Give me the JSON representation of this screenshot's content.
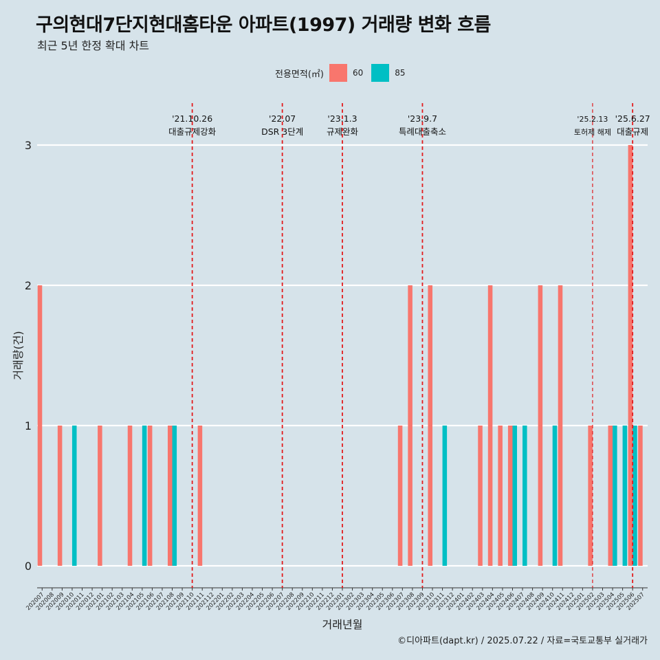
{
  "header": {
    "title": "구의현대7단지현대홈타운 아파트(1997) 거래량 변화 흐름",
    "subtitle": "최근 5년 한정 확대 차트"
  },
  "legend": {
    "title": "전용면적(㎡)",
    "items": [
      {
        "label": "60",
        "color": "#F8766D"
      },
      {
        "label": "85",
        "color": "#00BFC4"
      }
    ]
  },
  "caption": "©디아파트(dapt.kr) / 2025.07.22 / 자료=국토교통부 실거래가",
  "chart_data": {
    "type": "bar",
    "xlabel": "거래년월",
    "ylabel": "거래량(건)",
    "ylim": [
      0,
      3
    ],
    "yticks": [
      0,
      1,
      2,
      3
    ],
    "grid": true,
    "legend_position": "top",
    "categories": [
      "202007",
      "202008",
      "202009",
      "202010",
      "202011",
      "202012",
      "202101",
      "202102",
      "202103",
      "202104",
      "202105",
      "202106",
      "202107",
      "202108",
      "202109",
      "202110",
      "202111",
      "202112",
      "202201",
      "202202",
      "202203",
      "202204",
      "202205",
      "202206",
      "202207",
      "202208",
      "202209",
      "202210",
      "202211",
      "202212",
      "202301",
      "202302",
      "202303",
      "202304",
      "202305",
      "202306",
      "202307",
      "202308",
      "202309",
      "202310",
      "202311",
      "202312",
      "202401",
      "202402",
      "202403",
      "202404",
      "202405",
      "202406",
      "202407",
      "202408",
      "202409",
      "202410",
      "202411",
      "202412",
      "202501",
      "202502",
      "202503",
      "202504",
      "202505",
      "202506",
      "202507"
    ],
    "series": [
      {
        "name": "60",
        "color": "#F8766D",
        "values": [
          2,
          0,
          1,
          0,
          0,
          0,
          1,
          0,
          0,
          1,
          0,
          1,
          0,
          1,
          0,
          0,
          1,
          0,
          0,
          0,
          0,
          0,
          0,
          0,
          0,
          0,
          0,
          0,
          0,
          0,
          0,
          0,
          0,
          0,
          0,
          0,
          1,
          2,
          0,
          2,
          0,
          0,
          0,
          0,
          1,
          2,
          1,
          1,
          0,
          0,
          2,
          0,
          2,
          0,
          0,
          1,
          0,
          1,
          0,
          3,
          1
        ]
      },
      {
        "name": "85",
        "color": "#00BFC4",
        "values": [
          0,
          0,
          0,
          1,
          0,
          0,
          0,
          0,
          0,
          0,
          1,
          0,
          0,
          1,
          0,
          0,
          0,
          0,
          0,
          0,
          0,
          0,
          0,
          0,
          0,
          0,
          0,
          0,
          0,
          0,
          0,
          0,
          0,
          0,
          0,
          0,
          0,
          0,
          0,
          0,
          1,
          0,
          0,
          0,
          0,
          0,
          0,
          1,
          1,
          0,
          0,
          1,
          0,
          0,
          0,
          0,
          0,
          1,
          1,
          1,
          0
        ]
      }
    ],
    "annotations": [
      {
        "month": "202110",
        "date": "'21.10.26",
        "label": "대출규제강화"
      },
      {
        "month": "202207",
        "date": "'22.07",
        "label": "DSR 3단계"
      },
      {
        "month": "202301",
        "date": "'23.1.3",
        "label": "규제완화"
      },
      {
        "month": "202309",
        "date": "'23.9.7",
        "label": "특례대출축소"
      },
      {
        "month": "202502",
        "date": "'25.2.13",
        "label": "토허제 해제"
      },
      {
        "month": "202506",
        "date": "'25.6.27",
        "label": "대출규제"
      }
    ]
  }
}
